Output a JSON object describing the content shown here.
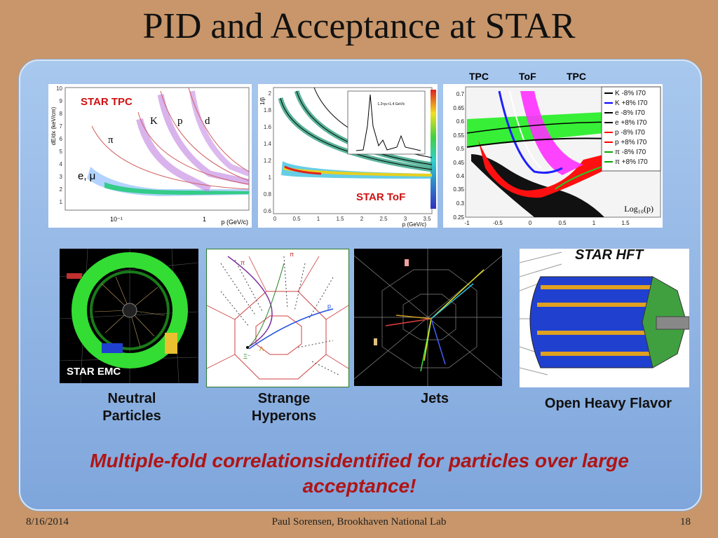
{
  "title": "PID and Acceptance at STAR",
  "fig_tpc": {
    "label": "STAR TPC",
    "ylabel": "dE/dx (keV/cm)",
    "xlabel": "p (GeV/c)",
    "yticks": [
      "10",
      "9",
      "8",
      "7",
      "6",
      "5",
      "4",
      "3",
      "2",
      "1"
    ],
    "xticks": [
      "10⁻¹",
      "1"
    ],
    "particles": [
      "K",
      "p",
      "d",
      "π",
      "e, μ"
    ]
  },
  "fig_tof": {
    "label": "STAR ToF",
    "ylabel": "1/β",
    "xlabel": "p (GeV/c)",
    "yticks": [
      "2",
      "1.8",
      "1.6",
      "1.4",
      "1.2",
      "1",
      "0.8",
      "0.6"
    ],
    "xticks": [
      "0",
      "0.5",
      "1",
      "1.5",
      "2",
      "2.5",
      "3",
      "3.5"
    ],
    "inset_text": "1.2<pₜ<1.4 GeV/c"
  },
  "fig_combined": {
    "top_labels": [
      "TPC",
      "ToF",
      "TPC"
    ],
    "yticks": [
      "0.7",
      "0.65",
      "0.6",
      "0.55",
      "0.5",
      "0.45",
      "0.4",
      "0.35",
      "0.3",
      "0.25"
    ],
    "xticks": [
      "-1",
      "-0.5",
      "0",
      "0.5",
      "1",
      "1.5"
    ],
    "xlabel": "Log₁₀(p)",
    "legend": [
      {
        "text": "K -8% I70",
        "color": "#000000"
      },
      {
        "text": "K +8% I70",
        "color": "#0000ff"
      },
      {
        "text": "e -8% I70",
        "color": "#000000"
      },
      {
        "text": "e +8% I70",
        "color": "#000000"
      },
      {
        "text": "p -8% I70",
        "color": "#ff0000"
      },
      {
        "text": "p +8% I70",
        "color": "#ff0000"
      },
      {
        "text": "π -8% I70",
        "color": "#00aa00"
      },
      {
        "text": "π +8% I70",
        "color": "#00aa00"
      }
    ]
  },
  "emc": {
    "label": "STAR EMC",
    "caption": "Neutral Particles"
  },
  "hyperon": {
    "caption": "Strange Hyperons",
    "marks": [
      "π",
      "π",
      "p",
      "Λ",
      "Ξ⁻"
    ]
  },
  "jets": {
    "caption": "Jets"
  },
  "hft": {
    "label": "STAR HFT",
    "caption": "Open Heavy Flavor"
  },
  "slogan": "Multiple-fold correlationsidentified  for particles over large acceptance!",
  "footer": {
    "date": "8/16/2014",
    "author": "Paul Sorensen, Brookhaven National Lab",
    "page": "18"
  }
}
